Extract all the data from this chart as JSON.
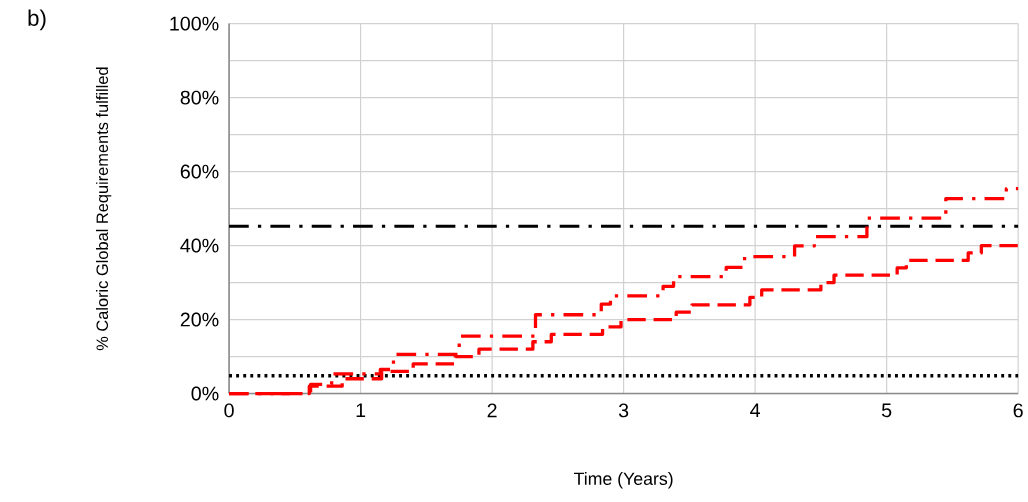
{
  "chart_data": {
    "type": "step",
    "xlabel": "Time (Years)",
    "ylabel": "% Caloric Global Requirements fulfilled",
    "annotations": [
      "b)"
    ],
    "xlim": [
      0,
      6
    ],
    "xticks": [
      0,
      1,
      2,
      3,
      4,
      5,
      6
    ],
    "ylim": [
      0,
      100
    ],
    "yticks": [
      {
        "value": 0,
        "label": "0%"
      },
      {
        "value": 10,
        "label": null
      },
      {
        "value": 20,
        "label": "20%"
      },
      {
        "value": 30,
        "label": null
      },
      {
        "value": 40,
        "label": "40%"
      },
      {
        "value": 50,
        "label": null
      },
      {
        "value": 60,
        "label": "60%"
      },
      {
        "value": 70,
        "label": null
      },
      {
        "value": 80,
        "label": "80%"
      },
      {
        "value": 90,
        "label": null
      },
      {
        "value": 100,
        "label": "100%"
      }
    ],
    "grid": true,
    "series": [
      {
        "color": "#ff0000",
        "line_style": "dashdot",
        "x": [
          0,
          0.62,
          0.78,
          1.15,
          1.25,
          1.75,
          2.33,
          2.83,
          2.9,
          3.3,
          3.38,
          3.78,
          3.92,
          4.3,
          4.45,
          4.85,
          5.45,
          5.91,
          6
        ],
        "values": [
          0,
          2.5,
          5.3,
          6.5,
          10.6,
          15.5,
          21.3,
          24.2,
          26.4,
          29,
          31.6,
          34.1,
          37,
          39.9,
          42.4,
          47.4,
          52.7,
          55.4,
          55.4
        ]
      },
      {
        "color": "#ff0000",
        "line_style": "dashed",
        "x": [
          0,
          0.61,
          0.86,
          1.16,
          1.4,
          1.72,
          1.9,
          2.31,
          2.45,
          2.84,
          2.98,
          3.4,
          3.52,
          3.96,
          4.05,
          4.5,
          4.6,
          5.08,
          5.15,
          5.62,
          5.72,
          6
        ],
        "values": [
          0,
          2,
          4,
          6,
          8,
          10,
          12,
          14,
          16,
          18,
          20,
          22,
          24,
          26,
          28,
          30,
          32,
          34,
          36,
          38,
          40,
          40
        ]
      }
    ],
    "ref_lines": [
      {
        "axis": "y",
        "value": 45.2,
        "color": "#000000",
        "line_style": "dashdot"
      },
      {
        "axis": "y",
        "value": 4.8,
        "color": "#000000",
        "line_style": "dotted"
      }
    ]
  }
}
